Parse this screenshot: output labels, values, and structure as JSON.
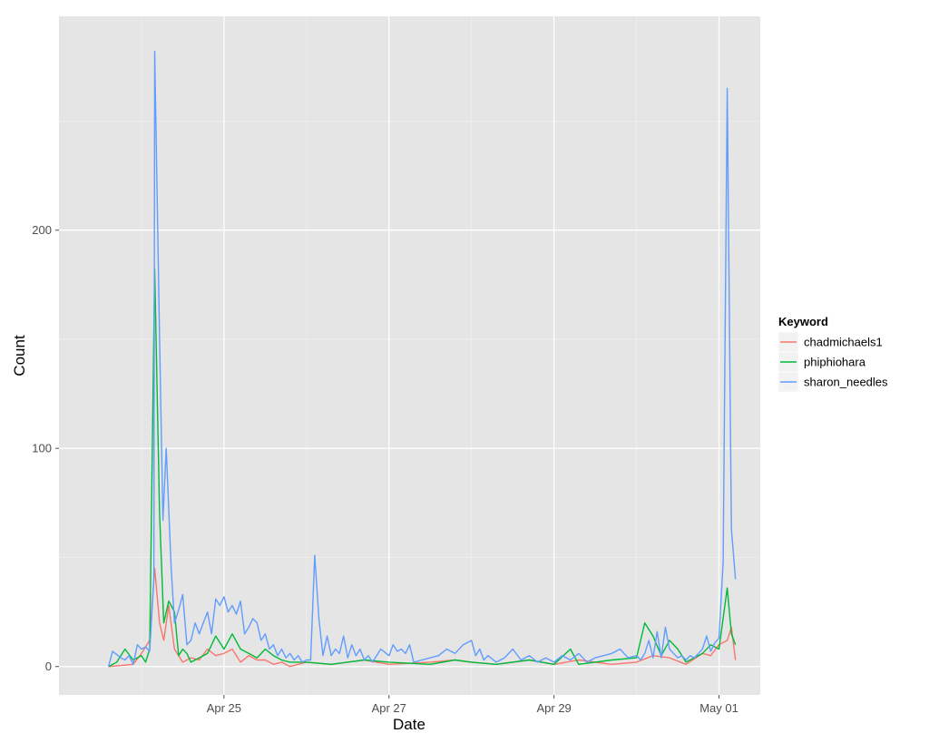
{
  "chart_data": {
    "type": "line",
    "xlabel": "Date",
    "ylabel": "Count",
    "x_ticks": [
      {
        "value": 25,
        "label": "Apr 25"
      },
      {
        "value": 27,
        "label": "Apr 27"
      },
      {
        "value": 29,
        "label": "Apr 29"
      },
      {
        "value": 31,
        "label": "May 01"
      }
    ],
    "y_ticks": [
      0,
      100,
      200
    ],
    "xlim": [
      23.0,
      31.5
    ],
    "ylim": [
      -13,
      298
    ],
    "grid": true,
    "panel_background": "#e5e5e5",
    "legend": {
      "title": "Keyword",
      "position": "right"
    },
    "series": [
      {
        "name": "chadmichaels1",
        "color": "#f8766d",
        "points": [
          [
            23.6,
            0
          ],
          [
            23.9,
            1
          ],
          [
            24.0,
            6
          ],
          [
            24.1,
            12
          ],
          [
            24.16,
            45
          ],
          [
            24.22,
            20
          ],
          [
            24.27,
            12
          ],
          [
            24.33,
            28
          ],
          [
            24.4,
            8
          ],
          [
            24.5,
            2
          ],
          [
            24.6,
            4
          ],
          [
            24.7,
            3
          ],
          [
            24.8,
            8
          ],
          [
            24.9,
            5
          ],
          [
            25.0,
            6
          ],
          [
            25.1,
            8
          ],
          [
            25.2,
            2
          ],
          [
            25.3,
            5
          ],
          [
            25.4,
            3
          ],
          [
            25.5,
            3
          ],
          [
            25.6,
            1
          ],
          [
            25.7,
            2
          ],
          [
            25.8,
            0
          ],
          [
            26.0,
            2
          ],
          [
            26.3,
            1
          ],
          [
            26.7,
            3
          ],
          [
            27.0,
            1
          ],
          [
            27.5,
            2
          ],
          [
            27.8,
            3
          ],
          [
            28.0,
            2
          ],
          [
            28.3,
            1
          ],
          [
            28.7,
            3
          ],
          [
            29.0,
            1
          ],
          [
            29.3,
            3
          ],
          [
            29.7,
            1
          ],
          [
            30.0,
            2
          ],
          [
            30.2,
            5
          ],
          [
            30.4,
            4
          ],
          [
            30.6,
            1
          ],
          [
            30.8,
            6
          ],
          [
            30.9,
            5
          ],
          [
            31.0,
            10
          ],
          [
            31.1,
            12
          ],
          [
            31.15,
            18
          ],
          [
            31.2,
            3
          ]
        ]
      },
      {
        "name": "phiphiohara",
        "color": "#00ba38",
        "points": [
          [
            23.6,
            0
          ],
          [
            23.7,
            2
          ],
          [
            23.8,
            8
          ],
          [
            23.9,
            3
          ],
          [
            24.0,
            5
          ],
          [
            24.05,
            2
          ],
          [
            24.1,
            8
          ],
          [
            24.16,
            182
          ],
          [
            24.22,
            70
          ],
          [
            24.27,
            20
          ],
          [
            24.33,
            30
          ],
          [
            24.4,
            25
          ],
          [
            24.45,
            5
          ],
          [
            24.5,
            8
          ],
          [
            24.55,
            6
          ],
          [
            24.6,
            2
          ],
          [
            24.7,
            4
          ],
          [
            24.8,
            6
          ],
          [
            24.9,
            14
          ],
          [
            25.0,
            8
          ],
          [
            25.1,
            15
          ],
          [
            25.2,
            8
          ],
          [
            25.3,
            6
          ],
          [
            25.4,
            4
          ],
          [
            25.5,
            8
          ],
          [
            25.6,
            5
          ],
          [
            25.7,
            3
          ],
          [
            25.8,
            2
          ],
          [
            26.0,
            2
          ],
          [
            26.3,
            1
          ],
          [
            26.7,
            3
          ],
          [
            27.0,
            2
          ],
          [
            27.5,
            1
          ],
          [
            27.8,
            3
          ],
          [
            28.0,
            2
          ],
          [
            28.3,
            1
          ],
          [
            28.7,
            3
          ],
          [
            29.0,
            1
          ],
          [
            29.2,
            8
          ],
          [
            29.3,
            1
          ],
          [
            29.7,
            3
          ],
          [
            30.0,
            4
          ],
          [
            30.1,
            20
          ],
          [
            30.2,
            14
          ],
          [
            30.3,
            5
          ],
          [
            30.4,
            12
          ],
          [
            30.5,
            8
          ],
          [
            30.6,
            2
          ],
          [
            30.8,
            6
          ],
          [
            30.9,
            10
          ],
          [
            31.0,
            8
          ],
          [
            31.1,
            36
          ],
          [
            31.15,
            15
          ],
          [
            31.2,
            10
          ]
        ]
      },
      {
        "name": "sharon_needles",
        "color": "#619cff",
        "points": [
          [
            23.6,
            0
          ],
          [
            23.65,
            7
          ],
          [
            23.75,
            4
          ],
          [
            23.8,
            3
          ],
          [
            23.85,
            5
          ],
          [
            23.9,
            1
          ],
          [
            23.95,
            10
          ],
          [
            24.0,
            8
          ],
          [
            24.05,
            9
          ],
          [
            24.1,
            7
          ],
          [
            24.15,
            40
          ],
          [
            24.16,
            282
          ],
          [
            24.22,
            150
          ],
          [
            24.26,
            67
          ],
          [
            24.3,
            100
          ],
          [
            24.36,
            45
          ],
          [
            24.4,
            20
          ],
          [
            24.45,
            26
          ],
          [
            24.5,
            33
          ],
          [
            24.55,
            10
          ],
          [
            24.6,
            12
          ],
          [
            24.65,
            20
          ],
          [
            24.7,
            15
          ],
          [
            24.75,
            20
          ],
          [
            24.8,
            25
          ],
          [
            24.85,
            15
          ],
          [
            24.9,
            31
          ],
          [
            24.95,
            28
          ],
          [
            25.0,
            32
          ],
          [
            25.05,
            25
          ],
          [
            25.1,
            28
          ],
          [
            25.15,
            24
          ],
          [
            25.2,
            30
          ],
          [
            25.25,
            15
          ],
          [
            25.3,
            18
          ],
          [
            25.35,
            22
          ],
          [
            25.4,
            20
          ],
          [
            25.45,
            12
          ],
          [
            25.5,
            15
          ],
          [
            25.55,
            8
          ],
          [
            25.6,
            10
          ],
          [
            25.65,
            5
          ],
          [
            25.7,
            8
          ],
          [
            25.75,
            4
          ],
          [
            25.8,
            6
          ],
          [
            25.85,
            3
          ],
          [
            25.9,
            5
          ],
          [
            25.95,
            2
          ],
          [
            26.0,
            3
          ],
          [
            26.05,
            3
          ],
          [
            26.1,
            51
          ],
          [
            26.15,
            22
          ],
          [
            26.2,
            5
          ],
          [
            26.25,
            14
          ],
          [
            26.3,
            5
          ],
          [
            26.35,
            8
          ],
          [
            26.4,
            6
          ],
          [
            26.45,
            14
          ],
          [
            26.5,
            4
          ],
          [
            26.55,
            10
          ],
          [
            26.6,
            5
          ],
          [
            26.65,
            8
          ],
          [
            26.7,
            3
          ],
          [
            26.75,
            5
          ],
          [
            26.8,
            2
          ],
          [
            26.9,
            8
          ],
          [
            27.0,
            5
          ],
          [
            27.05,
            10
          ],
          [
            27.1,
            7
          ],
          [
            27.15,
            8
          ],
          [
            27.2,
            6
          ],
          [
            27.25,
            10
          ],
          [
            27.3,
            2
          ],
          [
            27.4,
            3
          ],
          [
            27.5,
            4
          ],
          [
            27.6,
            5
          ],
          [
            27.7,
            8
          ],
          [
            27.8,
            6
          ],
          [
            27.9,
            10
          ],
          [
            28.0,
            12
          ],
          [
            28.05,
            5
          ],
          [
            28.1,
            8
          ],
          [
            28.15,
            3
          ],
          [
            28.2,
            5
          ],
          [
            28.3,
            2
          ],
          [
            28.4,
            4
          ],
          [
            28.5,
            8
          ],
          [
            28.6,
            3
          ],
          [
            28.7,
            5
          ],
          [
            28.8,
            2
          ],
          [
            28.9,
            4
          ],
          [
            29.0,
            2
          ],
          [
            29.1,
            5
          ],
          [
            29.2,
            3
          ],
          [
            29.3,
            6
          ],
          [
            29.4,
            2
          ],
          [
            29.5,
            4
          ],
          [
            29.6,
            5
          ],
          [
            29.7,
            6
          ],
          [
            29.8,
            8
          ],
          [
            29.9,
            4
          ],
          [
            30.0,
            5
          ],
          [
            30.05,
            3
          ],
          [
            30.1,
            6
          ],
          [
            30.15,
            12
          ],
          [
            30.2,
            4
          ],
          [
            30.25,
            16
          ],
          [
            30.3,
            4
          ],
          [
            30.35,
            18
          ],
          [
            30.4,
            8
          ],
          [
            30.45,
            6
          ],
          [
            30.5,
            4
          ],
          [
            30.55,
            5
          ],
          [
            30.6,
            3
          ],
          [
            30.65,
            5
          ],
          [
            30.7,
            4
          ],
          [
            30.75,
            6
          ],
          [
            30.8,
            8
          ],
          [
            30.85,
            14
          ],
          [
            30.9,
            7
          ],
          [
            30.95,
            11
          ],
          [
            31.0,
            13
          ],
          [
            31.05,
            48
          ],
          [
            31.1,
            265
          ],
          [
            31.15,
            63
          ],
          [
            31.2,
            40
          ]
        ]
      }
    ]
  }
}
